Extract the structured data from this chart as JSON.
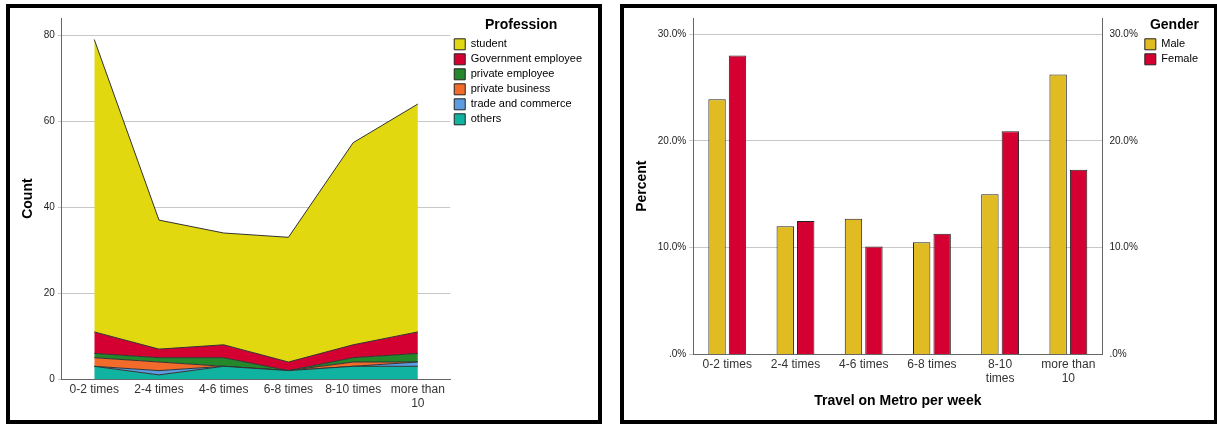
{
  "chart_data": [
    {
      "type": "area",
      "stacked": true,
      "ylabel": "Count",
      "legend_title": "Profession",
      "legend": "top right",
      "grid": "y",
      "marker": "none",
      "categories": [
        "0-2 times",
        "2-4 times",
        "4-6 times",
        "6-8 times",
        "8-10 times",
        "more than 10"
      ],
      "ylim": [
        0,
        84
      ],
      "yticks": [
        0,
        20,
        40,
        60,
        80
      ],
      "series": [
        {
          "name": "others",
          "color": "#10b3a0",
          "values": [
            3,
            1,
            3,
            2,
            3,
            3
          ]
        },
        {
          "name": "trade and commerce",
          "color": "#5b9be0",
          "values": [
            0,
            1,
            0,
            0,
            0,
            1
          ]
        },
        {
          "name": "private business",
          "color": "#f26b2a",
          "values": [
            2,
            2,
            0,
            0,
            1,
            0
          ]
        },
        {
          "name": "private employee",
          "color": "#23882a",
          "values": [
            1,
            1,
            2,
            0,
            1,
            2
          ]
        },
        {
          "name": "Government employee",
          "color": "#d50032",
          "values": [
            5,
            2,
            3,
            2,
            3,
            5
          ]
        },
        {
          "name": "student",
          "color": "#e2d810",
          "values": [
            68,
            30,
            26,
            29,
            47,
            53
          ]
        }
      ]
    },
    {
      "type": "bar",
      "xlabel": "Travel on Metro per week",
      "ylabel": "Percent",
      "legend_title": "Gender",
      "legend": "top right",
      "grid": "y",
      "categories": [
        "0-2 times",
        "2-4 times",
        "4-6 times",
        "6-8 times",
        "8-10 times",
        "more than 10"
      ],
      "ylim": [
        0,
        31.5
      ],
      "yticks": [
        {
          "value": 0,
          "label": ".0%"
        },
        {
          "value": 10,
          "label": "10.0%"
        },
        {
          "value": 20,
          "label": "20.0%"
        },
        {
          "value": 30,
          "label": "30.0%"
        }
      ],
      "y2lim": [
        0,
        31.5
      ],
      "y2ticks": [
        {
          "value": 0,
          "label": ".0%"
        },
        {
          "value": 10,
          "label": "10.0%"
        },
        {
          "value": 20,
          "label": "20.0%"
        },
        {
          "value": 30,
          "label": "30.0%"
        }
      ],
      "series": [
        {
          "name": "Male",
          "color": "#e0bb22",
          "values": [
            23.9,
            12.0,
            12.7,
            10.5,
            15.0,
            26.2
          ]
        },
        {
          "name": "Female",
          "color": "#d50032",
          "values": [
            28.0,
            12.5,
            10.1,
            11.3,
            20.9,
            17.3
          ]
        }
      ]
    }
  ]
}
